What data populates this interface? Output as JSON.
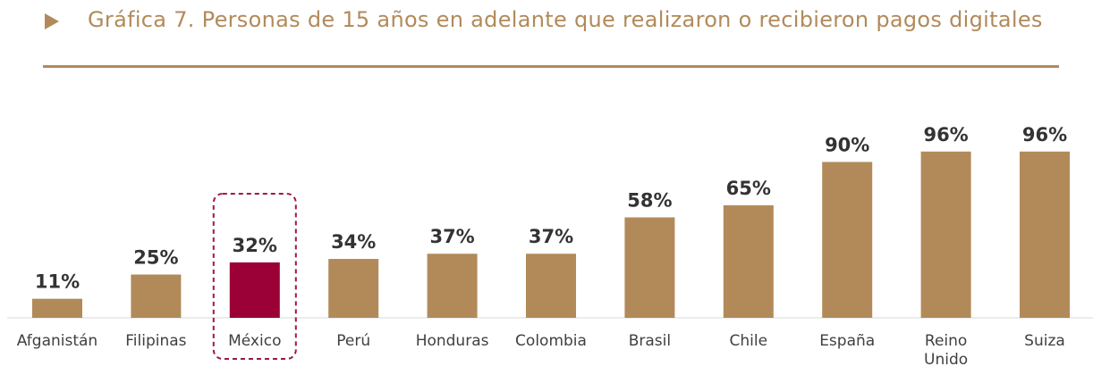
{
  "header": {
    "title": "Gráfica 7. Personas de 15 años en adelante que realizaron o recibieron pagos digitales",
    "arrow_icon": "triangle-right-icon"
  },
  "chart_data": {
    "type": "bar",
    "title": "Gráfica 7. Personas de 15 años en adelante que realizaron o recibieron pagos digitales",
    "categories": [
      "Afganistán",
      "Filipinas",
      "México",
      "Perú",
      "Honduras",
      "Colombia",
      "Brasil",
      "Chile",
      "España",
      "Reino Unido",
      "Suiza"
    ],
    "category_lines": [
      [
        "Afganistán"
      ],
      [
        "Filipinas"
      ],
      [
        "México"
      ],
      [
        "Perú"
      ],
      [
        "Honduras"
      ],
      [
        "Colombia"
      ],
      [
        "Brasil"
      ],
      [
        "Chile"
      ],
      [
        "España"
      ],
      [
        "Reino",
        "Unido"
      ],
      [
        "Suiza"
      ]
    ],
    "values": [
      11,
      25,
      32,
      34,
      37,
      37,
      58,
      65,
      90,
      96,
      96
    ],
    "value_labels": [
      "11%",
      "25%",
      "32%",
      "34%",
      "37%",
      "37%",
      "58%",
      "65%",
      "90%",
      "96%",
      "96%"
    ],
    "highlight_index": 2,
    "unit": "%",
    "ylim": [
      0,
      100
    ],
    "grid": false,
    "legend": "none",
    "colors": {
      "bar": "#B28A5A",
      "highlight": "#9B0036",
      "highlight_border": "#9B1B3F",
      "accent": "#B28A5A"
    }
  }
}
